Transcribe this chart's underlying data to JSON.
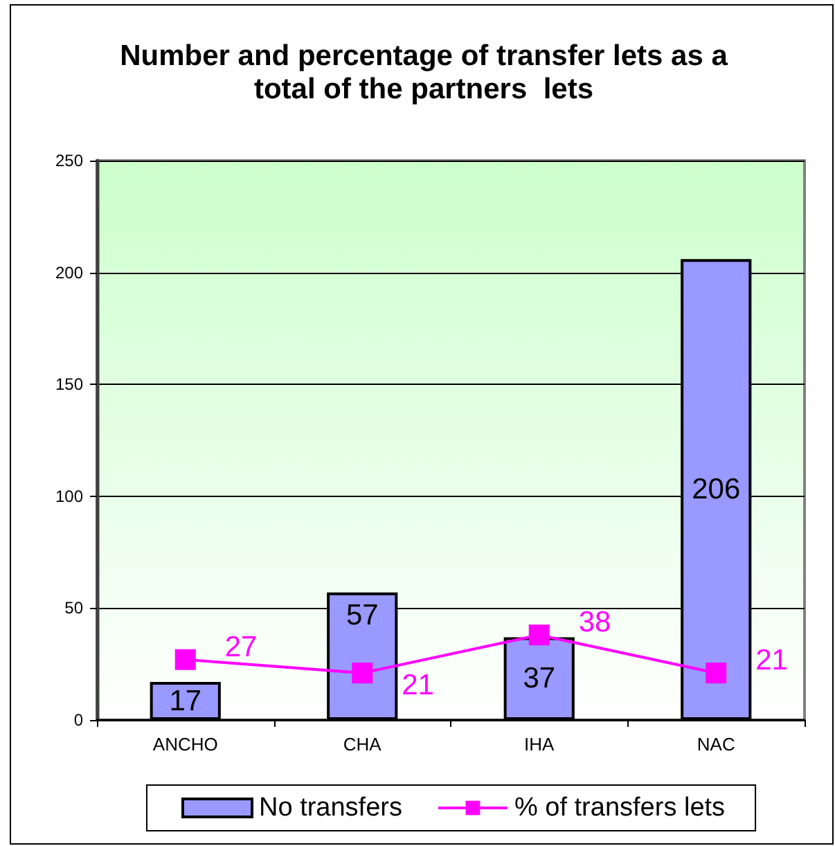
{
  "chart_data": {
    "type": "bar",
    "title": "Number and percentage of transfer lets as a total of the partners  lets",
    "categories": [
      "ANCHO",
      "CHA",
      "IHA",
      "NAC"
    ],
    "series": [
      {
        "name": "No transfers",
        "type": "bar",
        "color": "#9999ff",
        "values": [
          17,
          57,
          37,
          206
        ]
      },
      {
        "name": "% of transfers lets",
        "type": "line",
        "color": "#ff00ff",
        "values": [
          27,
          21,
          38,
          21
        ]
      }
    ],
    "ylim": [
      0,
      250
    ],
    "yticks": [
      0,
      50,
      100,
      150,
      200,
      250
    ],
    "grid": "y",
    "legend": "bottom",
    "data_labels": true,
    "marker": "square",
    "line_style": "solid"
  }
}
